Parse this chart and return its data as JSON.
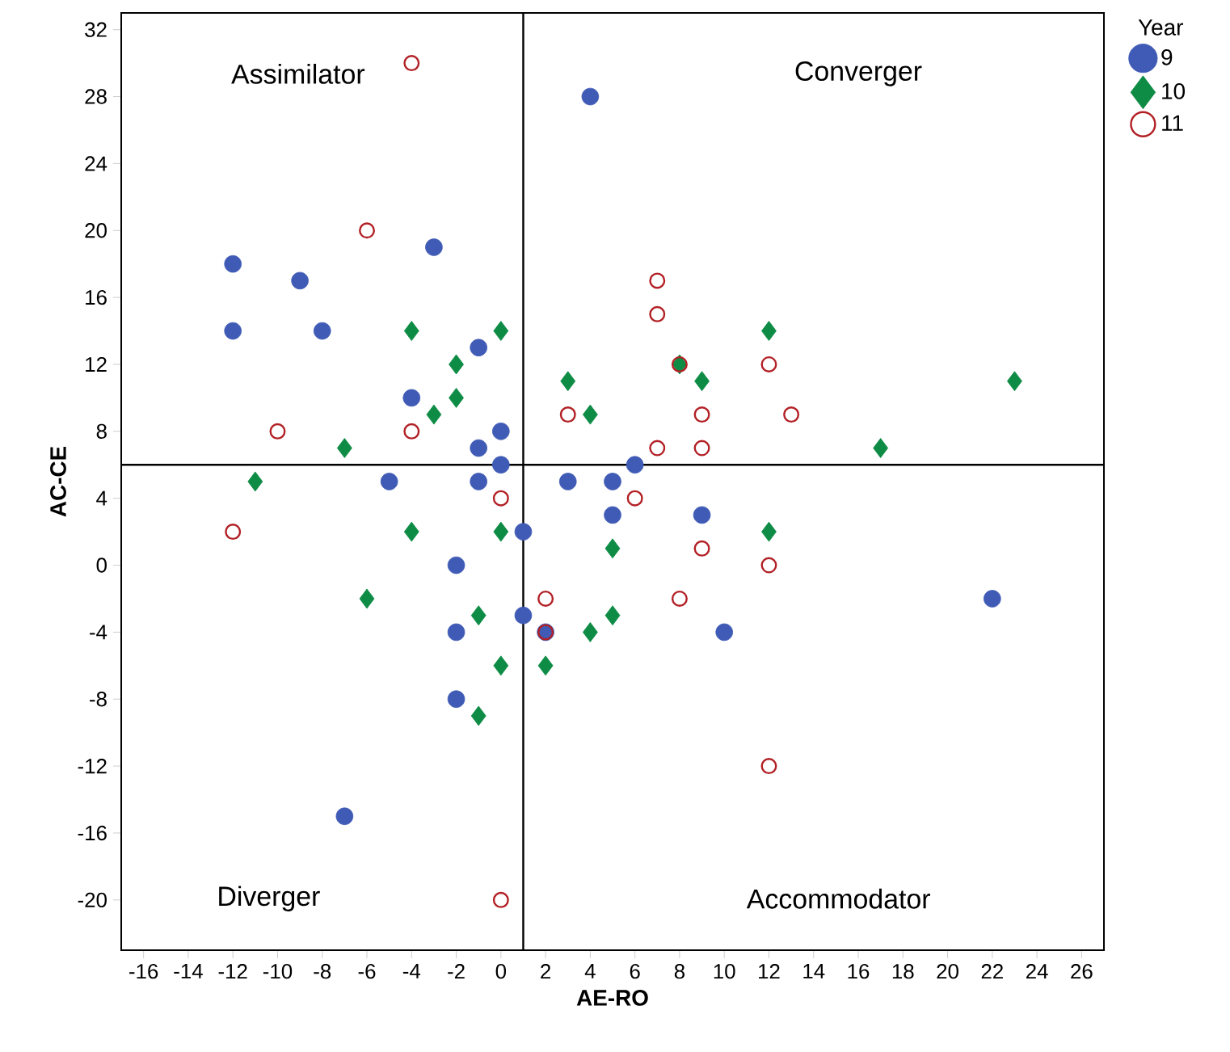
{
  "chart_data": {
    "type": "scatter",
    "xlabel": "AE-RO",
    "ylabel": "AC-CE",
    "legend_title": "Year",
    "legend": "right",
    "grid": false,
    "xlim": [
      -17,
      27
    ],
    "ylim": [
      -23,
      33
    ],
    "xticks": [
      -16,
      -14,
      -12,
      -10,
      -8,
      -6,
      -4,
      -2,
      0,
      2,
      4,
      6,
      8,
      10,
      12,
      14,
      16,
      18,
      20,
      22,
      24,
      26
    ],
    "yticks": [
      -20,
      -16,
      -12,
      -8,
      -4,
      0,
      4,
      8,
      12,
      16,
      20,
      24,
      28,
      32
    ],
    "annotations": [
      "Assimilator",
      "Converger",
      "Diverger",
      "Accommodator"
    ],
    "ref_lines": [
      {
        "axis": "x",
        "value": 1,
        "color": "#000000"
      },
      {
        "axis": "y",
        "value": 6,
        "color": "#000000"
      }
    ],
    "series": [
      {
        "name": "9",
        "color": "#3f5bb5",
        "marker": "circle",
        "x": [
          -12,
          -12,
          -9,
          -8,
          -3,
          -4,
          -1,
          -1,
          0,
          0,
          -5,
          -1,
          4,
          3,
          5,
          6,
          5,
          9,
          1,
          -2,
          -2,
          1,
          2,
          -2,
          -7,
          10,
          22
        ],
        "values": [
          18,
          14,
          17,
          14,
          19,
          10,
          13,
          7,
          8,
          6,
          5,
          5,
          28,
          5,
          5,
          6,
          3,
          3,
          2,
          0,
          -4,
          -3,
          -4,
          -8,
          -15,
          -4,
          -2
        ]
      },
      {
        "name": "10",
        "color": "#0e8c45",
        "marker": "diamond",
        "x": [
          -4,
          0,
          -2,
          -2,
          -3,
          3,
          4,
          8,
          9,
          12,
          23,
          17,
          -7,
          -11,
          -4,
          0,
          12,
          5,
          -6,
          -1,
          5,
          4,
          0,
          2,
          -1
        ],
        "values": [
          14,
          14,
          12,
          10,
          9,
          11,
          9,
          12,
          11,
          14,
          11,
          7,
          7,
          5,
          2,
          2,
          2,
          1,
          -2,
          -3,
          -3,
          -4,
          -6,
          -6,
          -9
        ]
      },
      {
        "name": "11",
        "color": "#b22025",
        "marker": "circle",
        "x": [
          -4,
          -6,
          -10,
          -4,
          -12,
          0,
          0,
          7,
          7,
          8,
          3,
          7,
          9,
          9,
          12,
          13,
          6,
          9,
          12,
          2,
          2,
          8,
          12
        ],
        "values": [
          30,
          20,
          8,
          8,
          2,
          4,
          -20,
          17,
          15,
          12,
          9,
          7,
          9,
          7,
          12,
          9,
          4,
          1,
          0,
          -2,
          -4,
          -2,
          -12
        ]
      }
    ]
  }
}
